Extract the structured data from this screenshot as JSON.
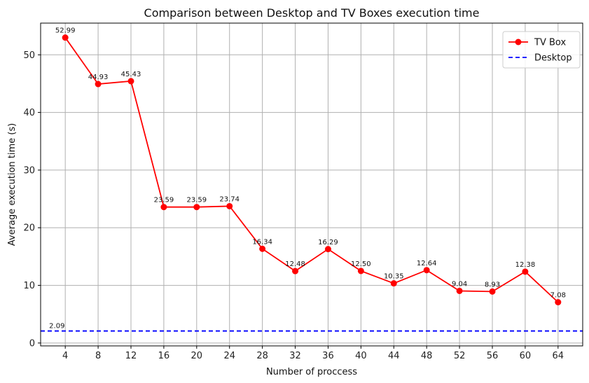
{
  "chart_data": {
    "type": "line",
    "title": "Comparison between Desktop and TV Boxes execution time",
    "xlabel": "Number of proccess",
    "ylabel": "Average execution time (s)",
    "x": [
      4,
      8,
      12,
      16,
      20,
      24,
      28,
      32,
      36,
      40,
      44,
      48,
      52,
      56,
      60,
      64
    ],
    "xlim": [
      1,
      67
    ],
    "ylim": [
      -0.5,
      55.5
    ],
    "yticks": [
      0,
      10,
      20,
      30,
      40,
      50
    ],
    "grid": true,
    "legend_position": "top-right",
    "series": [
      {
        "name": "TV Box",
        "color": "#ff0000",
        "style": "solid-with-markers",
        "values": [
          52.99,
          44.93,
          45.43,
          23.59,
          23.59,
          23.74,
          16.34,
          12.48,
          16.29,
          12.5,
          10.35,
          12.64,
          9.04,
          8.93,
          12.38,
          7.08
        ],
        "labels": [
          "52.99",
          "44.93",
          "45.43",
          "23.59",
          "23.59",
          "23.74",
          "16.34",
          "12.48",
          "16.29",
          "12.50",
          "10.35",
          "12.64",
          "9.04",
          "8.93",
          "12.38",
          "7.08"
        ]
      },
      {
        "name": "Desktop",
        "color": "#0000ff",
        "style": "dashed",
        "value": 2.09,
        "label": "2.09"
      }
    ]
  }
}
